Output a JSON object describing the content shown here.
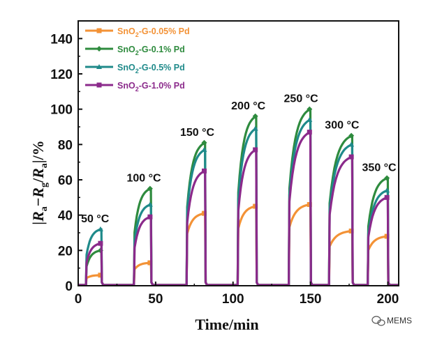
{
  "chart_data": {
    "type": "line",
    "title": "",
    "xlabel": "Time/min",
    "ylabel": "|Ra−Rg/Ra|/%",
    "xlim": [
      0,
      207
    ],
    "ylim": [
      0,
      150
    ],
    "x_ticks": [
      0,
      50,
      100,
      150,
      200
    ],
    "y_ticks": [
      0,
      20,
      40,
      60,
      80,
      100,
      120,
      140
    ],
    "legend_position": "top-left",
    "cycles": [
      {
        "label": "50 °C",
        "on": 5,
        "off": 15
      },
      {
        "label": "100 °C",
        "on": 36,
        "off": 47
      },
      {
        "label": "150 °C",
        "on": 70,
        "off": 82
      },
      {
        "label": "200 °C",
        "on": 103,
        "off": 115
      },
      {
        "label": "250 °C",
        "on": 136,
        "off": 150
      },
      {
        "label": "300 °C",
        "on": 162,
        "off": 177
      },
      {
        "label": "350 °C",
        "on": 187,
        "off": 200
      }
    ],
    "series": [
      {
        "name": "SnO2-G-0.05% Pd",
        "label_base": "SnO",
        "label_tail": "-G-0.05% Pd",
        "color": "#f39236",
        "marker": "square",
        "values": [
          6,
          13,
          41,
          45,
          46,
          31,
          28
        ]
      },
      {
        "name": "SnO2-G-0.1% Pd",
        "label_base": "SnO",
        "label_tail": "-G-0.1% Pd",
        "color": "#2e8b3e",
        "marker": "diamond",
        "values": [
          20,
          55,
          81,
          96,
          100,
          85,
          61
        ]
      },
      {
        "name": "SnO2-G-0.5% Pd",
        "label_base": "SnO",
        "label_tail": "-G-0.5% Pd",
        "color": "#1f8a8a",
        "marker": "triangle",
        "values": [
          32,
          46,
          77,
          89,
          94,
          80,
          54
        ]
      },
      {
        "name": "SnO2-G-1.0% Pd",
        "label_base": "SnO",
        "label_tail": "-G-1.0% Pd",
        "color": "#8b2a8b",
        "marker": "square",
        "values": [
          24,
          39,
          65,
          77,
          87,
          73,
          50
        ]
      }
    ]
  },
  "watermark": {
    "text": "MEMS",
    "icon": "wechat-icon"
  }
}
